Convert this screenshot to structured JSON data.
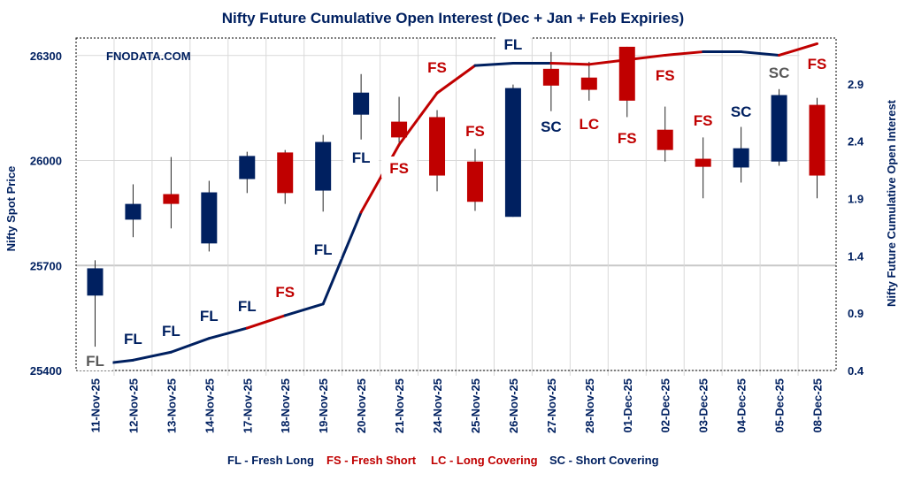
{
  "chart_data": {
    "type": "candlestick+line",
    "title": "Nifty Future Cumulative Open Interest (Dec + Jan  + Feb Expiries)",
    "watermark": "FNODATA.COM",
    "ylabel_left": "Nifty Spot Price",
    "ylabel_right": "Nifty Future Cumulative Open Interest",
    "ylim_left": [
      25400,
      26350
    ],
    "yticks_left": [
      "25400",
      "25700",
      "26000",
      "26300"
    ],
    "ylim_right": [
      0.4,
      3.3
    ],
    "yticks_right": [
      "0.4",
      "0.9",
      "1.4",
      "1.9",
      "2.4",
      "2.9"
    ],
    "grid": true,
    "colors": {
      "up": "#002060",
      "down": "#C00000",
      "text": "#002060",
      "label_gray": "#595959"
    },
    "categories": [
      "11-Nov-25",
      "12-Nov-25",
      "13-Nov-25",
      "14-Nov-25",
      "17-Nov-25",
      "18-Nov-25",
      "19-Nov-25",
      "20-Nov-25",
      "21-Nov-25",
      "24-Nov-25",
      "25-Nov-25",
      "26-Nov-25",
      "27-Nov-25",
      "28-Nov-25",
      "01-Dec-25",
      "02-Dec-25",
      "03-Dec-25",
      "04-Dec-25",
      "05-Dec-25",
      "08-Dec-25"
    ],
    "ohlc": [
      {
        "o": 25614,
        "h": 25715,
        "l": 25468,
        "c": 25692
      },
      {
        "o": 25831,
        "h": 25932,
        "l": 25781,
        "c": 25876
      },
      {
        "o": 25904,
        "h": 26010,
        "l": 25806,
        "c": 25876
      },
      {
        "o": 25763,
        "h": 25942,
        "l": 25740,
        "c": 25909
      },
      {
        "o": 25947,
        "h": 26025,
        "l": 25907,
        "c": 26013
      },
      {
        "o": 26023,
        "h": 26030,
        "l": 25876,
        "c": 25907
      },
      {
        "o": 25914,
        "h": 26073,
        "l": 25854,
        "c": 26053
      },
      {
        "o": 26131,
        "h": 26247,
        "l": 26060,
        "c": 26194
      },
      {
        "o": 26111,
        "h": 26182,
        "l": 26050,
        "c": 26066
      },
      {
        "o": 26124,
        "h": 26144,
        "l": 25912,
        "c": 25957
      },
      {
        "o": 25997,
        "h": 26033,
        "l": 25856,
        "c": 25882
      },
      {
        "o": 25839,
        "h": 26217,
        "l": 25839,
        "c": 26207
      },
      {
        "o": 26262,
        "h": 26310,
        "l": 26141,
        "c": 26214
      },
      {
        "o": 26237,
        "h": 26282,
        "l": 26171,
        "c": 26202
      },
      {
        "o": 26325,
        "h": 26325,
        "l": 26124,
        "c": 26171
      },
      {
        "o": 26088,
        "h": 26154,
        "l": 25997,
        "c": 26030
      },
      {
        "o": 26005,
        "h": 26066,
        "l": 25892,
        "c": 25982
      },
      {
        "o": 25980,
        "h": 26096,
        "l": 25937,
        "c": 26035
      },
      {
        "o": 25997,
        "h": 26204,
        "l": 25985,
        "c": 26187
      },
      {
        "o": 26159,
        "h": 26179,
        "l": 25892,
        "c": 25957
      }
    ],
    "open_interest": [
      0.45,
      0.49,
      0.56,
      0.68,
      0.77,
      0.88,
      0.98,
      1.78,
      2.37,
      2.82,
      3.06,
      3.08,
      3.08,
      3.07,
      3.11,
      3.15,
      3.18,
      3.18,
      3.15,
      3.25
    ],
    "labels": [
      {
        "text": "FL",
        "color": "#595959"
      },
      {
        "text": "FL",
        "color": "#002060"
      },
      {
        "text": "FL",
        "color": "#002060"
      },
      {
        "text": "FL",
        "color": "#002060"
      },
      {
        "text": "FL",
        "color": "#002060"
      },
      {
        "text": "FS",
        "color": "#C00000"
      },
      {
        "text": "FL",
        "color": "#002060"
      },
      {
        "text": "FL",
        "color": "#002060"
      },
      {
        "text": "FS",
        "color": "#C00000"
      },
      {
        "text": "FS",
        "color": "#C00000"
      },
      {
        "text": "FS",
        "color": "#C00000"
      },
      {
        "text": "FL",
        "color": "#002060"
      },
      {
        "text": "SC",
        "color": "#002060"
      },
      {
        "text": "LC",
        "color": "#C00000"
      },
      {
        "text": "FS",
        "color": "#C00000"
      },
      {
        "text": "FS",
        "color": "#C00000"
      },
      {
        "text": "FS",
        "color": "#C00000"
      },
      {
        "text": "SC",
        "color": "#002060"
      },
      {
        "text": "SC",
        "color": "#595959"
      },
      {
        "text": "FS",
        "color": "#C00000"
      }
    ],
    "legend": [
      {
        "text": "FL - Fresh Long",
        "color": "#002060"
      },
      {
        "text": "FS - Fresh Short",
        "color": "#C00000"
      },
      {
        "text": "LC - Long Covering",
        "color": "#C00000"
      },
      {
        "text": "SC - Short Covering",
        "color": "#002060"
      }
    ],
    "legend_position": "bottom"
  }
}
